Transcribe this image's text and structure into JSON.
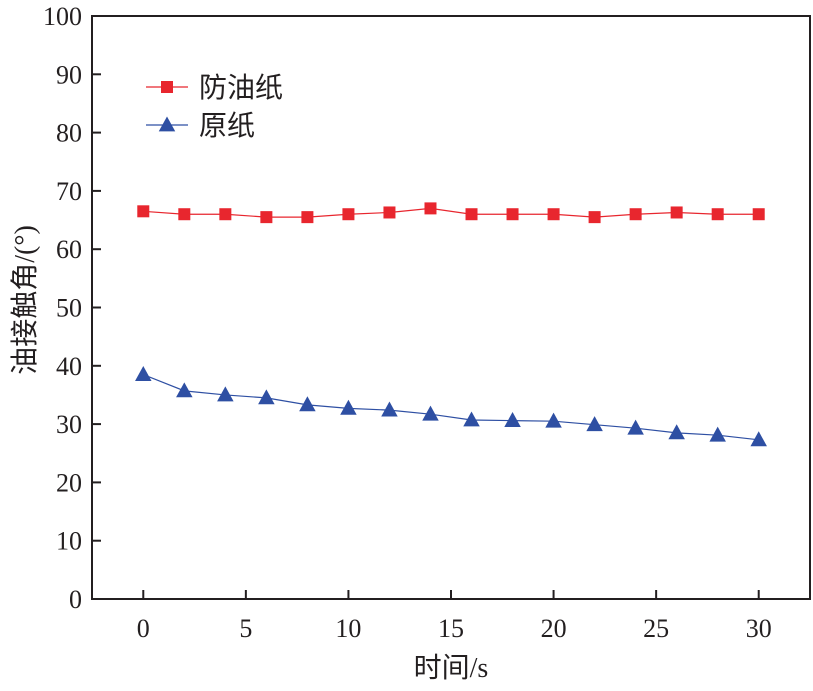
{
  "chart_data": {
    "type": "line",
    "title": "",
    "xlabel": "时间/s",
    "ylabel": "油接触角/(°)",
    "xlim": [
      -2.5,
      32.5
    ],
    "ylim": [
      0,
      100
    ],
    "xticks": [
      0,
      5,
      10,
      15,
      20,
      25,
      30
    ],
    "yticks": [
      0,
      10,
      20,
      30,
      40,
      50,
      60,
      70,
      80,
      90,
      100
    ],
    "grid": false,
    "legend_position": "top-left",
    "x": [
      0,
      2,
      4,
      6,
      8,
      10,
      12,
      14,
      16,
      18,
      20,
      22,
      24,
      26,
      28,
      30
    ],
    "series": [
      {
        "name": "防油纸",
        "marker": "square",
        "color": "#e8262e",
        "values": [
          66.5,
          66.0,
          66.0,
          65.5,
          65.5,
          66.0,
          66.3,
          67.0,
          66.0,
          66.0,
          66.0,
          65.5,
          66.0,
          66.3,
          66.0,
          66.0
        ]
      },
      {
        "name": "原纸",
        "marker": "triangle",
        "color": "#2e4fa3",
        "values": [
          38.5,
          35.7,
          35.0,
          34.5,
          33.3,
          32.7,
          32.4,
          31.7,
          30.7,
          30.6,
          30.5,
          29.9,
          29.3,
          28.5,
          28.1,
          27.3
        ]
      }
    ]
  }
}
